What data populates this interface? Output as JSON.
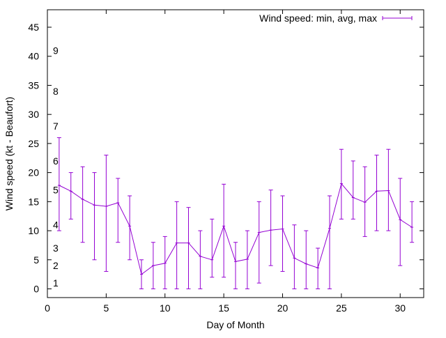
{
  "chart_data": {
    "type": "line",
    "title": "",
    "xlabel": "Day of Month",
    "ylabel": "Wind speed (kt - Beaufort)",
    "xlim": [
      0,
      32
    ],
    "ylim": [
      -1.5,
      48
    ],
    "x_ticks": [
      0,
      5,
      10,
      15,
      20,
      25,
      30
    ],
    "y_ticks": [
      0,
      5,
      10,
      15,
      20,
      25,
      30,
      35,
      40,
      45
    ],
    "beaufort_labels": [
      {
        "label": "1",
        "y": 1
      },
      {
        "label": "2",
        "y": 4
      },
      {
        "label": "3",
        "y": 7
      },
      {
        "label": "4",
        "y": 11
      },
      {
        "label": "5",
        "y": 17
      },
      {
        "label": "6",
        "y": 22
      },
      {
        "label": "7",
        "y": 28
      },
      {
        "label": "8",
        "y": 34
      },
      {
        "label": "9",
        "y": 41
      }
    ],
    "legend": {
      "position": "top-right",
      "label": "Wind speed: min, avg, max"
    },
    "grid": false,
    "series": [
      {
        "name": "Wind speed: min, avg, max",
        "color": "#9400d3",
        "x": [
          1,
          2,
          3,
          4,
          5,
          6,
          7,
          8,
          9,
          10,
          11,
          12,
          13,
          14,
          15,
          16,
          17,
          18,
          19,
          20,
          21,
          22,
          23,
          24,
          25,
          26,
          27,
          28,
          29,
          30,
          31
        ],
        "avg": [
          17.8,
          16.8,
          15.4,
          14.4,
          14.2,
          14.8,
          10.8,
          2.5,
          4.0,
          4.4,
          7.9,
          7.9,
          5.6,
          5.0,
          10.8,
          4.7,
          5.1,
          9.7,
          10.1,
          10.3,
          5.3,
          4.3,
          3.6,
          10.4,
          18.1,
          15.7,
          14.9,
          16.8,
          16.9,
          11.9,
          10.6
        ],
        "min": [
          10,
          12,
          8,
          5,
          3,
          8,
          5,
          0,
          0,
          0,
          0,
          0,
          0,
          2,
          2,
          0,
          0,
          1,
          4,
          3,
          0,
          0,
          0,
          0,
          12,
          12,
          9,
          10,
          10,
          4,
          8
        ],
        "max": [
          26,
          20,
          21,
          20,
          23,
          19,
          16,
          5,
          8,
          9,
          15,
          14,
          10,
          12,
          18,
          8,
          10,
          15,
          17,
          16,
          11,
          10,
          7,
          16,
          24,
          22,
          21,
          23,
          24,
          19,
          15
        ]
      }
    ]
  }
}
